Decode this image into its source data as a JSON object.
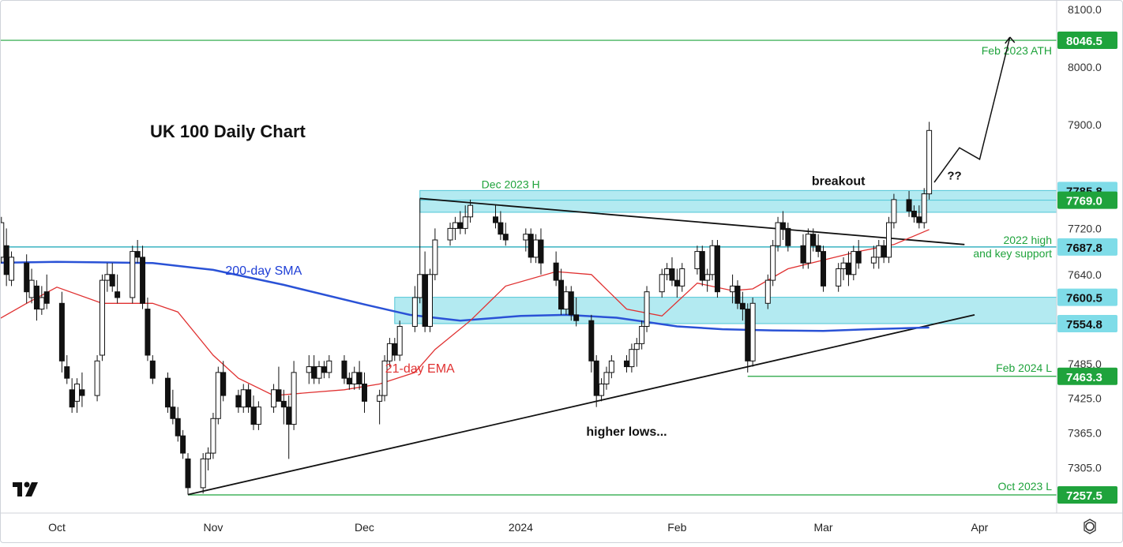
{
  "chart_data": {
    "type": "candlestick",
    "title": "UK 100 Daily Chart",
    "ylim": [
      7230,
      8115
    ],
    "y_ticks": [
      "8100.0",
      "8000.0",
      "7900.0",
      "7720.0",
      "7640.0",
      "7485.0",
      "7425.0",
      "7365.0",
      "7305.0"
    ],
    "x_ticks": [
      {
        "label": "Oct",
        "date": "2023-10-01"
      },
      {
        "label": "Nov",
        "date": "2023-11-01"
      },
      {
        "label": "Dec",
        "date": "2023-12-01"
      },
      {
        "label": "2024",
        "date": "2024-01-01"
      },
      {
        "label": "Feb",
        "date": "2024-02-01"
      },
      {
        "label": "Mar",
        "date": "2024-03-01"
      },
      {
        "label": "Apr",
        "date": "2024-04-01"
      }
    ],
    "price_labels": [
      {
        "value": 8046.5,
        "text": "8046.5",
        "color": "#1fa33c"
      },
      {
        "value": 7785.8,
        "text": "7785.8",
        "color": "#7fdce8"
      },
      {
        "value": 7769.0,
        "text": "7769.0",
        "color": "#1fa33c"
      },
      {
        "value": 7687.8,
        "text": "7687.8",
        "color": "#7fdce8"
      },
      {
        "value": 7600.5,
        "text": "7600.5",
        "color": "#7fdce8"
      },
      {
        "value": 7554.8,
        "text": "7554.8",
        "color": "#7fdce8"
      },
      {
        "value": 7463.3,
        "text": "7463.3",
        "color": "#1fa33c"
      },
      {
        "value": 7257.5,
        "text": "7257.5",
        "color": "#1fa33c"
      }
    ],
    "levels": [
      {
        "value": 8046.5,
        "label": "Feb 2023 ATH",
        "color": "#1fa33c"
      },
      {
        "value": 7687.8,
        "label": "2022 high",
        "label2": "and key support",
        "color": "#14a3b5"
      },
      {
        "value": 7463.3,
        "label": "Feb 2024 L",
        "color": "#1fa33c"
      },
      {
        "value": 7257.5,
        "label": "Oct 2023 L",
        "color": "#1fa33c"
      }
    ],
    "zones": [
      {
        "from": "2023-12-12",
        "low": 7748,
        "high": 7785.8,
        "label": "Dec 2023 H"
      },
      {
        "from": "2023-12-07",
        "low": 7554.8,
        "high": 7600.5
      }
    ],
    "trendlines": [
      {
        "name": "resistance",
        "from": [
          "2023-12-12",
          7772
        ],
        "to": [
          "2024-03-29",
          7692
        ]
      },
      {
        "name": "support",
        "from": [
          "2023-10-27",
          7258
        ],
        "to": [
          "2024-03-31",
          7570
        ]
      }
    ],
    "annotations": [
      {
        "text": "200-day SMA",
        "date": "2023-11-11",
        "value": 7640,
        "color": "#1e3ed6"
      },
      {
        "text": "21-day EMA",
        "date": "2023-12-12",
        "value": 7470,
        "color": "#e03131"
      },
      {
        "text": "breakout",
        "date": "2024-03-04",
        "value": 7795,
        "color": "#111111"
      },
      {
        "text": "??",
        "date": "2024-03-27",
        "value": 7805,
        "color": "#111111"
      },
      {
        "text": "higher lows...",
        "date": "2024-01-22",
        "value": 7360,
        "color": "#111111"
      }
    ],
    "projection": [
      [
        "2024-03-23",
        7800
      ],
      [
        "2024-03-28",
        7860
      ],
      [
        "2024-04-01",
        7840
      ],
      [
        "2024-04-07",
        8052
      ]
    ],
    "sma200": [
      [
        "2023-09-17",
        7660
      ],
      [
        "2023-10-01",
        7662
      ],
      [
        "2023-10-20",
        7660
      ],
      [
        "2023-11-01",
        7648
      ],
      [
        "2023-11-15",
        7622
      ],
      [
        "2023-12-01",
        7588
      ],
      [
        "2023-12-10",
        7570
      ],
      [
        "2023-12-20",
        7560
      ],
      [
        "2024-01-01",
        7568
      ],
      [
        "2024-01-10",
        7570
      ],
      [
        "2024-01-20",
        7565
      ],
      [
        "2024-02-01",
        7550
      ],
      [
        "2024-02-10",
        7545
      ],
      [
        "2024-02-20",
        7543
      ],
      [
        "2024-03-01",
        7542
      ],
      [
        "2024-03-10",
        7545
      ],
      [
        "2024-03-22",
        7548
      ]
    ],
    "ema21": [
      [
        "2023-09-17",
        7550
      ],
      [
        "2023-09-25",
        7590
      ],
      [
        "2023-10-01",
        7618
      ],
      [
        "2023-10-10",
        7590
      ],
      [
        "2023-10-20",
        7590
      ],
      [
        "2023-10-25",
        7575
      ],
      [
        "2023-11-01",
        7500
      ],
      [
        "2023-11-06",
        7460
      ],
      [
        "2023-11-13",
        7430
      ],
      [
        "2023-11-20",
        7435
      ],
      [
        "2023-11-27",
        7440
      ],
      [
        "2023-12-04",
        7450
      ],
      [
        "2023-12-11",
        7470
      ],
      [
        "2023-12-15",
        7510
      ],
      [
        "2023-12-22",
        7560
      ],
      [
        "2023-12-29",
        7620
      ],
      [
        "2024-01-08",
        7645
      ],
      [
        "2024-01-15",
        7640
      ],
      [
        "2024-01-22",
        7580
      ],
      [
        "2024-01-29",
        7568
      ],
      [
        "2024-02-05",
        7625
      ],
      [
        "2024-02-12",
        7612
      ],
      [
        "2024-02-16",
        7615
      ],
      [
        "2024-02-23",
        7650
      ],
      [
        "2024-03-01",
        7665
      ],
      [
        "2024-03-08",
        7680
      ],
      [
        "2024-03-15",
        7692
      ],
      [
        "2024-03-22",
        7718
      ]
    ],
    "candles": [
      [
        "2023-09-18",
        7650,
        7720,
        7640,
        7700
      ],
      [
        "2023-09-19",
        7690,
        7700,
        7640,
        7660
      ],
      [
        "2023-09-20",
        7670,
        7740,
        7660,
        7730
      ],
      [
        "2023-09-21",
        7690,
        7720,
        7620,
        7640
      ],
      [
        "2023-09-22",
        7630,
        7680,
        7620,
        7670
      ],
      [
        "2023-09-25",
        7660,
        7675,
        7590,
        7610
      ],
      [
        "2023-09-26",
        7600,
        7650,
        7590,
        7630
      ],
      [
        "2023-09-27",
        7620,
        7630,
        7560,
        7580
      ],
      [
        "2023-09-28",
        7580,
        7620,
        7570,
        7600
      ],
      [
        "2023-09-29",
        7610,
        7640,
        7580,
        7590
      ],
      [
        "2023-10-02",
        7590,
        7610,
        7470,
        7490
      ],
      [
        "2023-10-03",
        7480,
        7500,
        7450,
        7460
      ],
      [
        "2023-10-04",
        7440,
        7460,
        7400,
        7410
      ],
      [
        "2023-10-05",
        7420,
        7460,
        7400,
        7450
      ],
      [
        "2023-10-06",
        7440,
        7470,
        7410,
        7430
      ],
      [
        "2023-10-09",
        7430,
        7500,
        7420,
        7490
      ],
      [
        "2023-10-10",
        7500,
        7640,
        7490,
        7630
      ],
      [
        "2023-10-11",
        7630,
        7660,
        7610,
        7640
      ],
      [
        "2023-10-12",
        7640,
        7660,
        7610,
        7620
      ],
      [
        "2023-10-13",
        7610,
        7640,
        7590,
        7600
      ],
      [
        "2023-10-16",
        7600,
        7690,
        7590,
        7680
      ],
      [
        "2023-10-17",
        7680,
        7700,
        7660,
        7670
      ],
      [
        "2023-10-18",
        7670,
        7690,
        7580,
        7590
      ],
      [
        "2023-10-19",
        7580,
        7600,
        7490,
        7500
      ],
      [
        "2023-10-20",
        7490,
        7500,
        7450,
        7460
      ],
      [
        "2023-10-23",
        7460,
        7470,
        7400,
        7410
      ],
      [
        "2023-10-24",
        7410,
        7440,
        7380,
        7390
      ],
      [
        "2023-10-25",
        7390,
        7410,
        7350,
        7360
      ],
      [
        "2023-10-26",
        7360,
        7370,
        7320,
        7330
      ],
      [
        "2023-10-27",
        7320,
        7330,
        7258,
        7270
      ],
      [
        "2023-10-30",
        7270,
        7330,
        7260,
        7320
      ],
      [
        "2023-10-31",
        7320,
        7340,
        7300,
        7330
      ],
      [
        "2023-11-01",
        7330,
        7400,
        7320,
        7390
      ],
      [
        "2023-11-02",
        7390,
        7480,
        7380,
        7470
      ],
      [
        "2023-11-03",
        7470,
        7490,
        7420,
        7430
      ],
      [
        "2023-11-06",
        7430,
        7440,
        7400,
        7410
      ],
      [
        "2023-11-07",
        7410,
        7450,
        7400,
        7440
      ],
      [
        "2023-11-08",
        7440,
        7450,
        7400,
        7410
      ],
      [
        "2023-11-09",
        7410,
        7430,
        7370,
        7380
      ],
      [
        "2023-11-10",
        7380,
        7420,
        7370,
        7410
      ],
      [
        "2023-11-13",
        7410,
        7450,
        7400,
        7440
      ],
      [
        "2023-11-14",
        7440,
        7480,
        7420,
        7420
      ],
      [
        "2023-11-15",
        7420,
        7440,
        7380,
        7410
      ],
      [
        "2023-11-16",
        7410,
        7430,
        7320,
        7380
      ],
      [
        "2023-11-17",
        7380,
        7490,
        7370,
        7470
      ],
      [
        "2023-11-20",
        7470,
        7500,
        7450,
        7480
      ],
      [
        "2023-11-21",
        7480,
        7500,
        7450,
        7460
      ],
      [
        "2023-11-22",
        7460,
        7490,
        7450,
        7480
      ],
      [
        "2023-11-23",
        7480,
        7490,
        7460,
        7470
      ],
      [
        "2023-11-24",
        7470,
        7500,
        7460,
        7490
      ],
      [
        "2023-11-27",
        7490,
        7500,
        7450,
        7460
      ],
      [
        "2023-11-28",
        7460,
        7470,
        7440,
        7450
      ],
      [
        "2023-11-29",
        7450,
        7480,
        7440,
        7470
      ],
      [
        "2023-11-30",
        7470,
        7490,
        7440,
        7450
      ],
      [
        "2023-12-01",
        7450,
        7470,
        7400,
        7420
      ],
      [
        "2023-12-04",
        7420,
        7440,
        7380,
        7430
      ],
      [
        "2023-12-05",
        7430,
        7500,
        7420,
        7490
      ],
      [
        "2023-12-06",
        7490,
        7530,
        7480,
        7520
      ],
      [
        "2023-12-07",
        7520,
        7530,
        7490,
        7500
      ],
      [
        "2023-12-08",
        7500,
        7560,
        7490,
        7550
      ],
      [
        "2023-12-11",
        7550,
        7620,
        7540,
        7600
      ],
      [
        "2023-12-12",
        7600,
        7772,
        7590,
        7640
      ],
      [
        "2023-12-13",
        7640,
        7680,
        7540,
        7550
      ],
      [
        "2023-12-14",
        7550,
        7650,
        7540,
        7640
      ],
      [
        "2023-12-15",
        7640,
        7720,
        7630,
        7700
      ],
      [
        "2023-12-18",
        7700,
        7730,
        7690,
        7720
      ],
      [
        "2023-12-19",
        7720,
        7740,
        7700,
        7730
      ],
      [
        "2023-12-20",
        7730,
        7750,
        7710,
        7720
      ],
      [
        "2023-12-21",
        7720,
        7760,
        7710,
        7740
      ],
      [
        "2023-12-22",
        7740,
        7770,
        7730,
        7760
      ],
      [
        "2023-12-27",
        7740,
        7760,
        7720,
        7730
      ],
      [
        "2023-12-28",
        7730,
        7750,
        7700,
        7710
      ],
      [
        "2023-12-29",
        7710,
        7730,
        7690,
        7700
      ],
      [
        "2024-01-02",
        7700,
        7720,
        7680,
        7710
      ],
      [
        "2024-01-03",
        7710,
        7720,
        7660,
        7670
      ],
      [
        "2024-01-04",
        7670,
        7710,
        7660,
        7700
      ],
      [
        "2024-01-05",
        7700,
        7720,
        7640,
        7660
      ],
      [
        "2024-01-08",
        7660,
        7680,
        7620,
        7630
      ],
      [
        "2024-01-09",
        7630,
        7650,
        7570,
        7580
      ],
      [
        "2024-01-10",
        7580,
        7620,
        7570,
        7610
      ],
      [
        "2024-01-11",
        7610,
        7620,
        7560,
        7570
      ],
      [
        "2024-01-12",
        7570,
        7600,
        7550,
        7560
      ],
      [
        "2024-01-15",
        7560,
        7570,
        7470,
        7490
      ],
      [
        "2024-01-16",
        7490,
        7500,
        7410,
        7430
      ],
      [
        "2024-01-17",
        7430,
        7460,
        7420,
        7450
      ],
      [
        "2024-01-18",
        7450,
        7480,
        7440,
        7470
      ],
      [
        "2024-01-19",
        7470,
        7500,
        7460,
        7490
      ],
      [
        "2024-01-22",
        7490,
        7500,
        7470,
        7480
      ],
      [
        "2024-01-23",
        7480,
        7520,
        7470,
        7510
      ],
      [
        "2024-01-24",
        7510,
        7530,
        7480,
        7520
      ],
      [
        "2024-01-25",
        7520,
        7560,
        7510,
        7550
      ],
      [
        "2024-01-26",
        7550,
        7620,
        7540,
        7610
      ],
      [
        "2024-01-29",
        7610,
        7650,
        7600,
        7640
      ],
      [
        "2024-01-30",
        7640,
        7660,
        7630,
        7650
      ],
      [
        "2024-01-31",
        7650,
        7670,
        7620,
        7630
      ],
      [
        "2024-02-01",
        7630,
        7650,
        7600,
        7620
      ],
      [
        "2024-02-02",
        7620,
        7660,
        7610,
        7650
      ],
      [
        "2024-02-05",
        7650,
        7690,
        7640,
        7680
      ],
      [
        "2024-02-06",
        7680,
        7690,
        7620,
        7630
      ],
      [
        "2024-02-07",
        7630,
        7650,
        7610,
        7640
      ],
      [
        "2024-02-08",
        7640,
        7700,
        7630,
        7690
      ],
      [
        "2024-02-09",
        7690,
        7700,
        7600,
        7610
      ],
      [
        "2024-02-12",
        7610,
        7640,
        7590,
        7620
      ],
      [
        "2024-02-13",
        7620,
        7630,
        7580,
        7590
      ],
      [
        "2024-02-14",
        7590,
        7610,
        7560,
        7580
      ],
      [
        "2024-02-15",
        7580,
        7590,
        7470,
        7490
      ],
      [
        "2024-02-16",
        7490,
        7600,
        7480,
        7590
      ],
      [
        "2024-02-19",
        7590,
        7640,
        7580,
        7630
      ],
      [
        "2024-02-20",
        7630,
        7700,
        7620,
        7690
      ],
      [
        "2024-02-21",
        7690,
        7740,
        7680,
        7730
      ],
      [
        "2024-02-22",
        7730,
        7750,
        7700,
        7720
      ],
      [
        "2024-02-23",
        7720,
        7730,
        7680,
        7690
      ],
      [
        "2024-02-26",
        7690,
        7710,
        7650,
        7660
      ],
      [
        "2024-02-27",
        7660,
        7720,
        7650,
        7710
      ],
      [
        "2024-02-28",
        7710,
        7720,
        7680,
        7690
      ],
      [
        "2024-02-29",
        7690,
        7710,
        7670,
        7680
      ],
      [
        "2024-03-01",
        7680,
        7690,
        7610,
        7620
      ],
      [
        "2024-03-04",
        7620,
        7660,
        7610,
        7650
      ],
      [
        "2024-03-05",
        7650,
        7670,
        7630,
        7660
      ],
      [
        "2024-03-06",
        7660,
        7680,
        7620,
        7640
      ],
      [
        "2024-03-07",
        7640,
        7690,
        7630,
        7680
      ],
      [
        "2024-03-08",
        7680,
        7700,
        7650,
        7660
      ],
      [
        "2024-03-11",
        7660,
        7690,
        7650,
        7670
      ],
      [
        "2024-03-12",
        7670,
        7700,
        7650,
        7690
      ],
      [
        "2024-03-13",
        7690,
        7700,
        7660,
        7670
      ],
      [
        "2024-03-14",
        7670,
        7740,
        7660,
        7730
      ],
      [
        "2024-03-15",
        7730,
        7780,
        7720,
        7770
      ],
      [
        "2024-03-18",
        7770,
        7785,
        7740,
        7750
      ],
      [
        "2024-03-19",
        7750,
        7760,
        7730,
        7740
      ],
      [
        "2024-03-20",
        7740,
        7760,
        7720,
        7730
      ],
      [
        "2024-03-21",
        7730,
        7790,
        7720,
        7780
      ],
      [
        "2024-03-22",
        7780,
        7905,
        7770,
        7890
      ]
    ]
  }
}
